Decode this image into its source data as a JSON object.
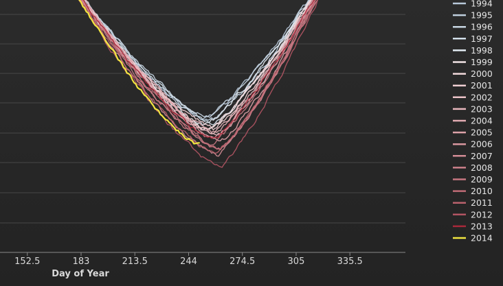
{
  "chart_data": {
    "type": "line",
    "title": "",
    "xlabel": "Day of Year",
    "ylabel": "",
    "x_ticks": [
      152.5,
      183,
      213.5,
      244,
      274.5,
      305,
      335.5
    ],
    "x_tick_labels": [
      "152.5",
      "183",
      "213.5",
      "244",
      "274.5",
      "305",
      "335.5"
    ],
    "xlim": [
      137,
      367
    ],
    "grid": true,
    "legend": "right",
    "series": [
      {
        "name": "1994",
        "color": "#b8c9da",
        "min_day": 254,
        "depth": 0.39
      },
      {
        "name": "1995",
        "color": "#c0d0df",
        "min_day": 256,
        "depth": 0.42
      },
      {
        "name": "1996",
        "color": "#c8d7e4",
        "min_day": 255,
        "depth": 0.38
      },
      {
        "name": "1997",
        "color": "#d2dfea",
        "min_day": 258,
        "depth": 0.44
      },
      {
        "name": "1998",
        "color": "#e4edf4",
        "min_day": 253,
        "depth": 0.46
      },
      {
        "name": "1999",
        "color": "#f2e4e6",
        "min_day": 256,
        "depth": 0.49
      },
      {
        "name": "2000",
        "color": "#f3dadd",
        "min_day": 255,
        "depth": 0.5
      },
      {
        "name": "2001",
        "color": "#f0cfd3",
        "min_day": 258,
        "depth": 0.48
      },
      {
        "name": "2002",
        "color": "#ecc2c7",
        "min_day": 260,
        "depth": 0.55
      },
      {
        "name": "2003",
        "color": "#e8b7bd",
        "min_day": 257,
        "depth": 0.53
      },
      {
        "name": "2004",
        "color": "#e3acb3",
        "min_day": 259,
        "depth": 0.52
      },
      {
        "name": "2005",
        "color": "#dea2a9",
        "min_day": 262,
        "depth": 0.6
      },
      {
        "name": "2006",
        "color": "#d9979f",
        "min_day": 258,
        "depth": 0.57
      },
      {
        "name": "2007",
        "color": "#d38c95",
        "min_day": 260,
        "depth": 0.73
      },
      {
        "name": "2008",
        "color": "#cd818b",
        "min_day": 262,
        "depth": 0.68
      },
      {
        "name": "2009",
        "color": "#c77781",
        "min_day": 257,
        "depth": 0.63
      },
      {
        "name": "2010",
        "color": "#c16c77",
        "min_day": 262,
        "depth": 0.67
      },
      {
        "name": "2011",
        "color": "#ba626d",
        "min_day": 259,
        "depth": 0.72
      },
      {
        "name": "2012",
        "color": "#b25563",
        "min_day": 262,
        "depth": 0.83
      },
      {
        "name": "2013",
        "color": "#a8283a",
        "min_day": 258,
        "depth": 0.58
      },
      {
        "name": "2014",
        "color": "#f2e640",
        "min_day": 250,
        "depth": 0.63
      }
    ],
    "highlight": {
      "name": "2014",
      "end_day": 250
    }
  }
}
